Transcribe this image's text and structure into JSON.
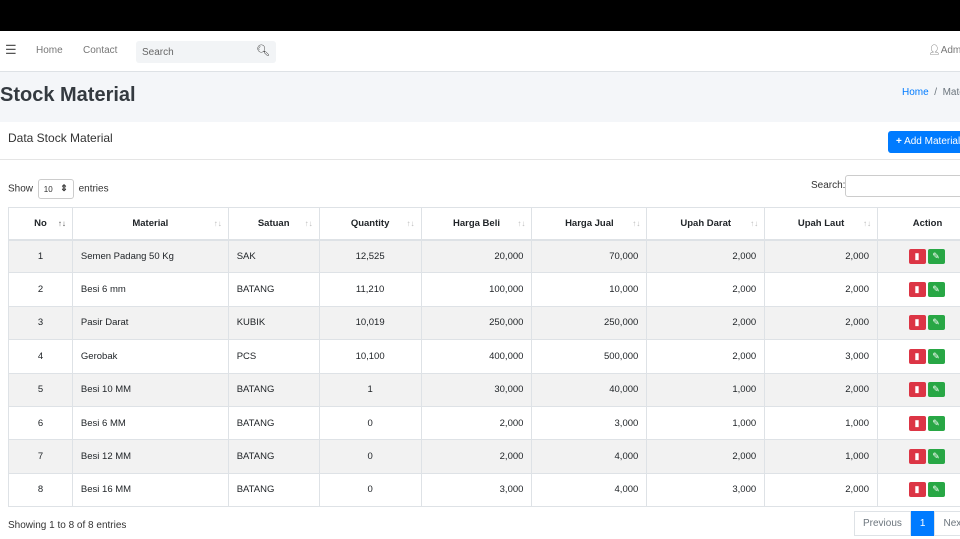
{
  "nav": {
    "home": "Home",
    "contact": "Contact",
    "search_placeholder": "Search",
    "user": "Admin"
  },
  "header": {
    "title": "Stock Material",
    "breadcrumb": [
      "Home",
      "Material"
    ]
  },
  "card": {
    "title": "Data Stock Material",
    "add_label": "Add Material"
  },
  "table_controls": {
    "show": "Show",
    "entries_value": "10",
    "entries": "entries",
    "search": "Search:"
  },
  "columns": [
    "No",
    "Material",
    "Satuan",
    "Quantity",
    "Harga Beli",
    "Harga Jual",
    "Upah Darat",
    "Upah Laut",
    "Action"
  ],
  "rows": [
    [
      "1",
      "Semen Padang 50 Kg",
      "SAK",
      "12,525",
      "20,000",
      "70,000",
      "2,000",
      "2,000"
    ],
    [
      "2",
      "Besi 6 mm",
      "BATANG",
      "11,210",
      "100,000",
      "10,000",
      "2,000",
      "2,000"
    ],
    [
      "3",
      "Pasir Darat",
      "KUBIK",
      "10,019",
      "250,000",
      "250,000",
      "2,000",
      "2,000"
    ],
    [
      "4",
      "Gerobak",
      "PCS",
      "10,100",
      "400,000",
      "500,000",
      "2,000",
      "3,000"
    ],
    [
      "5",
      "Besi 10 MM",
      "BATANG",
      "1",
      "30,000",
      "40,000",
      "1,000",
      "2,000"
    ],
    [
      "6",
      "Besi 6 MM",
      "BATANG",
      "0",
      "2,000",
      "3,000",
      "1,000",
      "1,000"
    ],
    [
      "7",
      "Besi 12 MM",
      "BATANG",
      "0",
      "2,000",
      "4,000",
      "2,000",
      "1,000"
    ],
    [
      "8",
      "Besi 16 MM",
      "BATANG",
      "0",
      "3,000",
      "4,000",
      "3,000",
      "2,000"
    ]
  ],
  "footer": {
    "info": "Showing 1 to 8 of 8 entries",
    "previous": "Previous",
    "page": "1",
    "next": "Next"
  },
  "colors": {
    "primary": "#007bff",
    "danger": "#dc3545",
    "success": "#28a745"
  }
}
